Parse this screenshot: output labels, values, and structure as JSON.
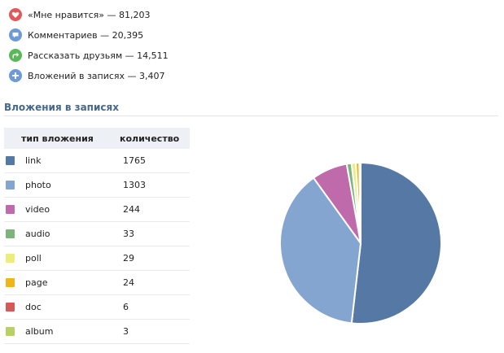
{
  "stats": [
    {
      "icon": "heart-icon",
      "color": "#e25959",
      "label": "«Мне нравится» — 81,203"
    },
    {
      "icon": "comment-icon",
      "color": "#6e9ad8",
      "label": "Комментариев — 20,395"
    },
    {
      "icon": "share-icon",
      "color": "#5ab85a",
      "label": "Рассказать друзьям — 14,511"
    },
    {
      "icon": "plus-icon",
      "color": "#6e9ad8",
      "label": "Вложений в записях — 3,407"
    }
  ],
  "attachments": {
    "title": "Вложения в записях",
    "columns": {
      "type": "тип вложения",
      "count": "количество"
    },
    "rows": [
      {
        "type": "link",
        "count": "1765",
        "color": "#5578a5"
      },
      {
        "type": "photo",
        "count": "1303",
        "color": "#84a5d0"
      },
      {
        "type": "video",
        "count": "244",
        "color": "#bf6aaa"
      },
      {
        "type": "audio",
        "count": "33",
        "color": "#7cb57c"
      },
      {
        "type": "poll",
        "count": "29",
        "color": "#eded7d"
      },
      {
        "type": "page",
        "count": "24",
        "color": "#f0b41c"
      },
      {
        "type": "doc",
        "count": "6",
        "color": "#d45a5a"
      },
      {
        "type": "album",
        "count": "3",
        "color": "#b7d166"
      }
    ]
  },
  "chart_data": {
    "type": "pie",
    "categories": [
      "link",
      "photo",
      "video",
      "audio",
      "poll",
      "page",
      "doc",
      "album"
    ],
    "values": [
      1765,
      1303,
      244,
      33,
      29,
      24,
      6,
      3
    ],
    "colors": [
      "#5578a5",
      "#84a5d0",
      "#bf6aaa",
      "#7cb57c",
      "#eded7d",
      "#f0b41c",
      "#d45a5a",
      "#b7d166"
    ]
  }
}
